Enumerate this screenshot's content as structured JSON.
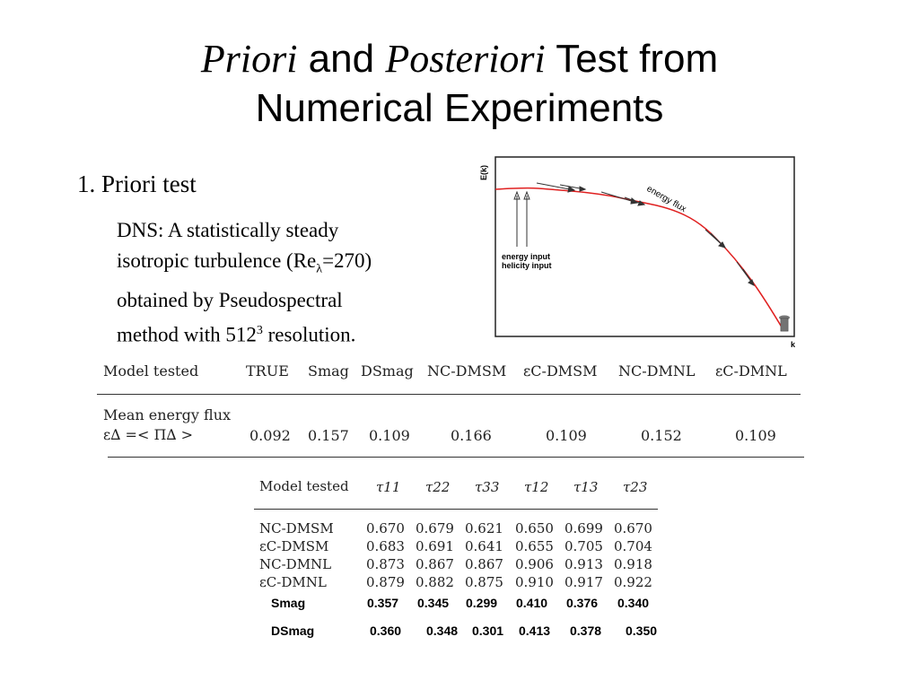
{
  "slide": {
    "title": {
      "word1": "Priori",
      "word2": " and ",
      "word3": "Posteriori",
      "word4": " Test from",
      "line2": "Numerical Experiments"
    },
    "bullet": "1. Priori test",
    "description": {
      "line1": "DNS: A statistically steady",
      "line2_a": "isotropic turbulence (Re",
      "line2_sub": "λ",
      "line2_b": "=270)",
      "line3": "obtained by Pseudospectral",
      "line4_a": "method with 512",
      "line4_sup": "3",
      "line4_b": " resolution."
    }
  },
  "plot": {
    "y_label": "E(k)",
    "x_label": "k",
    "annotation_flux": "energy flux",
    "annotation_input_1": "energy input",
    "annotation_input_2": "helicity input",
    "curve_color": "#e02020"
  },
  "table1": {
    "headers": [
      "Model tested",
      "TRUE",
      "Smag",
      "DSmag",
      "NC-DMSM",
      "εC-DMSM",
      "NC-DMNL",
      "εC-DMNL"
    ],
    "row_label_1": "Mean energy flux",
    "row_label_2": "ε∆ =< Π∆ >",
    "values": [
      "0.092",
      "0.157",
      "0.109",
      "0.166",
      "0.109",
      "0.152",
      "0.109"
    ]
  },
  "table2": {
    "headers": [
      "Model tested",
      "τ11",
      "τ22",
      "τ33",
      "τ12",
      "τ13",
      "τ23"
    ],
    "rows": [
      {
        "label": "NC-DMSM",
        "values": [
          "0.670",
          "0.679",
          "0.621",
          "0.650",
          "0.699",
          "0.670"
        ]
      },
      {
        "label": "εC-DMSM",
        "values": [
          "0.683",
          "0.691",
          "0.641",
          "0.655",
          "0.705",
          "0.704"
        ]
      },
      {
        "label": "NC-DMNL",
        "values": [
          "0.873",
          "0.867",
          "0.867",
          "0.906",
          "0.913",
          "0.918"
        ]
      },
      {
        "label": "εC-DMNL",
        "values": [
          "0.879",
          "0.882",
          "0.875",
          "0.910",
          "0.917",
          "0.922"
        ]
      }
    ],
    "extra_rows": [
      {
        "label": "Smag",
        "values": [
          "0.357",
          "0.345",
          "0.299",
          "0.410",
          "0.376",
          "0.340"
        ]
      },
      {
        "label": "DSmag",
        "values": [
          "0.360",
          "0.348",
          "0.301",
          "0.413",
          "0.378",
          "0.350"
        ]
      }
    ]
  }
}
